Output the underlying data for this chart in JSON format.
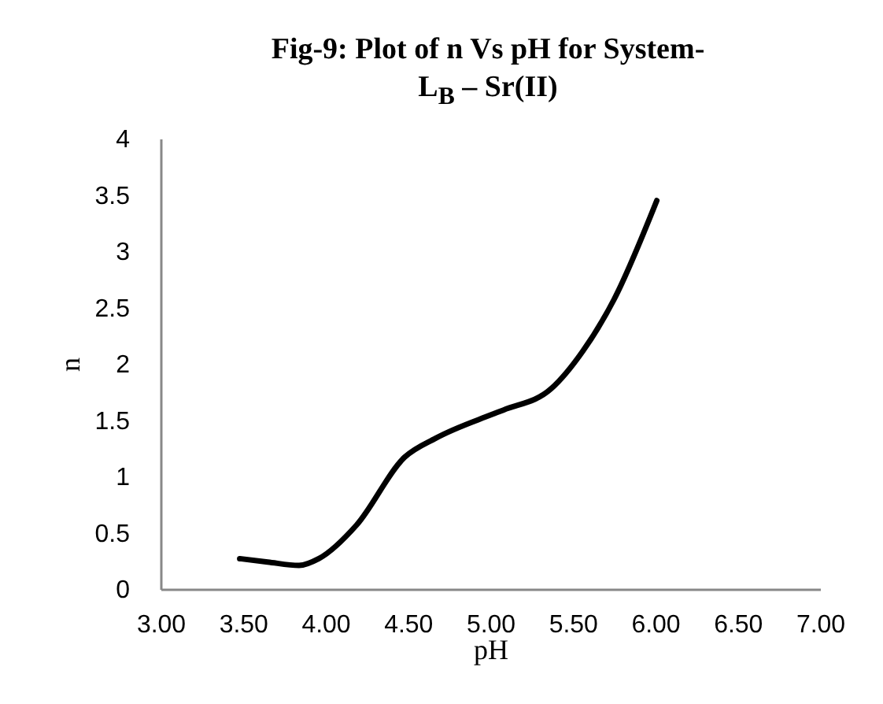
{
  "chart_data": {
    "type": "line",
    "title": "Fig-9: Plot of n Vs pH  for System- L$_{B}$ – Sr(II)",
    "xlabel": "pH",
    "ylabel": "n",
    "x": [
      3.48,
      3.65,
      3.84,
      3.96,
      4.19,
      4.48,
      4.67,
      5.01,
      5.08,
      5.37,
      5.56,
      5.75,
      6.01
    ],
    "series": [
      {
        "color": "#000000",
        "values": [
          0.27,
          0.24,
          0.21,
          0.27,
          0.57,
          1.17,
          1.34,
          1.55,
          1.59,
          1.78,
          2.11,
          2.57,
          3.45
        ]
      }
    ],
    "xlim": [
      3,
      7
    ],
    "xticks": [
      {
        "value": 3,
        "label": "3.00"
      },
      {
        "value": 3.5,
        "label": "3.50"
      },
      {
        "value": 4,
        "label": "4.00"
      },
      {
        "value": 4.5,
        "label": "4.50"
      },
      {
        "value": 5,
        "label": "5.00"
      },
      {
        "value": 5.5,
        "label": "5.50"
      },
      {
        "value": 6,
        "label": "6.00"
      },
      {
        "value": 6.5,
        "label": "6.50"
      },
      {
        "value": 7,
        "label": "7.00"
      }
    ],
    "ylim": [
      0,
      4
    ],
    "yticks": [
      0,
      0.5,
      1,
      1.5,
      2,
      2.5,
      3,
      3.5,
      4
    ],
    "grid": false,
    "marker": "none",
    "line_style": "solid"
  }
}
